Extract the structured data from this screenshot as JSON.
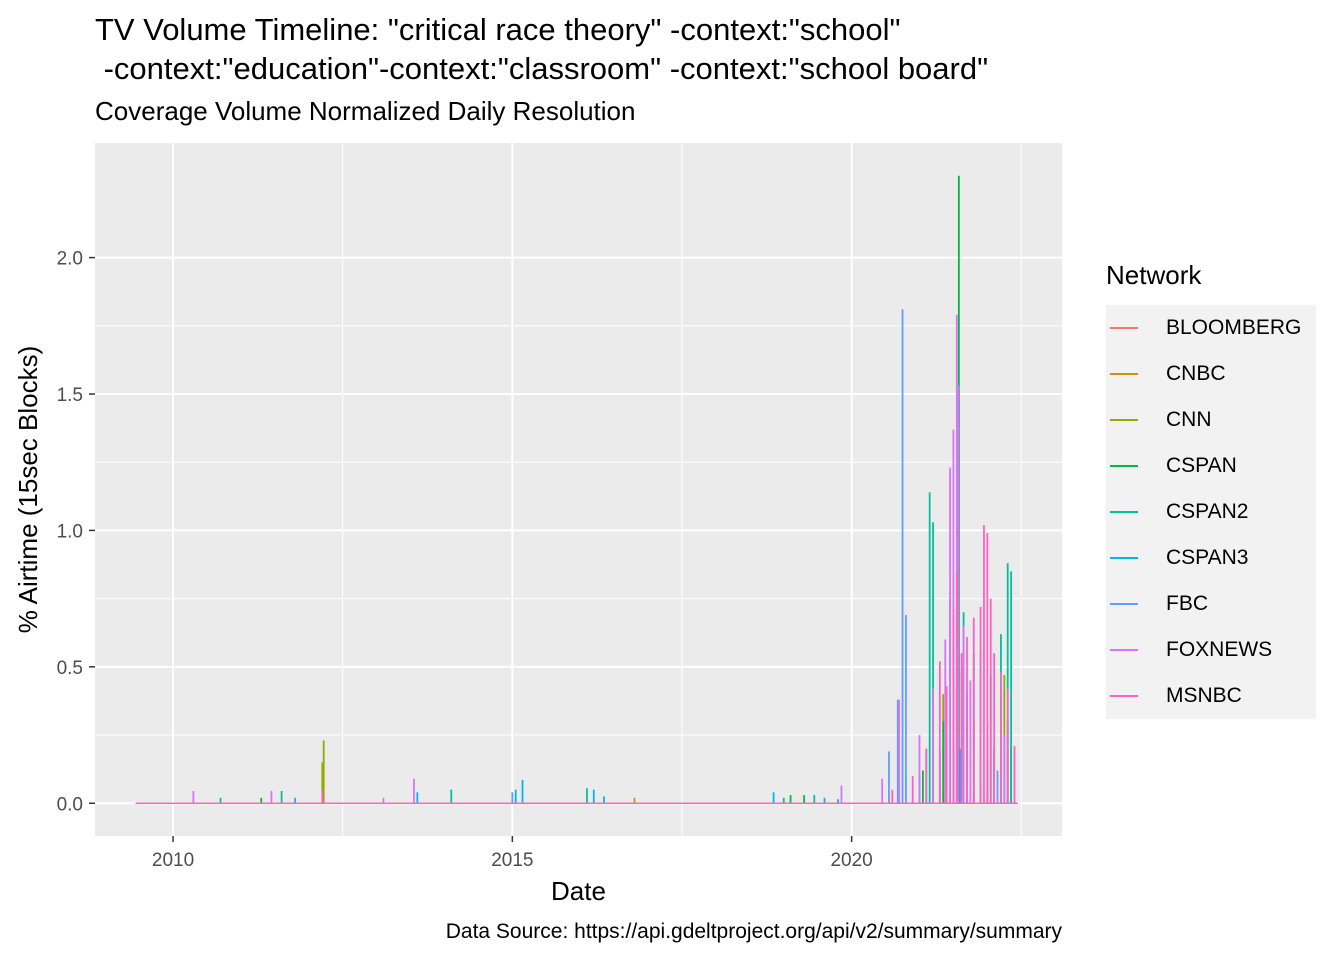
{
  "title": "TV Volume Timeline: \"critical race theory\" -context:\"school\"\n -context:\"education\"-context:\"classroom\" -context:\"school board\"",
  "subtitle": "Coverage Volume Normalized Daily Resolution",
  "caption": "Data Source: https://api.gdeltproject.org/api/v2/summary/summary",
  "colors": {
    "panel_bg": "#ebebeb",
    "grid": "#ffffff",
    "BLOOMBERG": "#F8766D",
    "CNBC": "#D39200",
    "CNN": "#93AA00",
    "CSPAN": "#00BA38",
    "CSPAN2": "#00C19F",
    "CSPAN3": "#00B9E3",
    "FBC": "#619CFF",
    "FOXNEWS": "#DB72FB",
    "MSNBC": "#FF61C3"
  },
  "legend": {
    "title": "Network",
    "items": [
      "BLOOMBERG",
      "CNBC",
      "CNN",
      "CSPAN",
      "CSPAN2",
      "CSPAN3",
      "FBC",
      "FOXNEWS",
      "MSNBC"
    ]
  },
  "chart_data": {
    "type": "line",
    "xlabel": "Date",
    "ylabel": "% Airtime (15sec Blocks)",
    "xlim": [
      2008.85,
      2023.1
    ],
    "ylim": [
      -0.12,
      2.42
    ],
    "x_ticks": [
      2010,
      2015,
      2020
    ],
    "x_tick_labels": [
      "2010",
      "2015",
      "2020"
    ],
    "y_ticks": [
      0.0,
      0.5,
      1.0,
      1.5,
      2.0
    ],
    "y_tick_labels": [
      "0.0",
      "0.5",
      "1.0",
      "1.5",
      "2.0"
    ],
    "x_range_start": 2009.45,
    "x_range_end": 2022.45,
    "baseline": 0.0,
    "grid": true,
    "legend_position": "right",
    "series": [
      {
        "name": "BLOOMBERG",
        "spikes": [
          [
            2021.45,
            0.05
          ],
          [
            2021.62,
            0.08
          ],
          [
            2021.9,
            0.04
          ]
        ]
      },
      {
        "name": "CNBC",
        "spikes": [
          [
            2016.8,
            0.02
          ],
          [
            2021.3,
            0.06
          ],
          [
            2021.55,
            0.1
          ],
          [
            2022.0,
            0.05
          ]
        ]
      },
      {
        "name": "CNN",
        "spikes": [
          [
            2012.22,
            0.23
          ],
          [
            2012.2,
            0.15
          ],
          [
            2020.7,
            0.06
          ],
          [
            2021.0,
            0.1
          ],
          [
            2021.2,
            0.18
          ],
          [
            2021.35,
            0.4
          ],
          [
            2021.5,
            0.55
          ],
          [
            2021.62,
            0.48
          ],
          [
            2021.8,
            0.3
          ],
          [
            2022.0,
            0.25
          ],
          [
            2022.25,
            0.47
          ],
          [
            2022.35,
            0.2
          ]
        ]
      },
      {
        "name": "CSPAN",
        "spikes": [
          [
            2011.3,
            0.02
          ],
          [
            2019.1,
            0.03
          ],
          [
            2019.3,
            0.03
          ],
          [
            2021.05,
            0.12
          ],
          [
            2021.35,
            0.3
          ],
          [
            2021.5,
            0.45
          ],
          [
            2021.58,
            2.3
          ],
          [
            2021.7,
            0.4
          ],
          [
            2021.9,
            0.25
          ],
          [
            2022.1,
            0.2
          ]
        ]
      },
      {
        "name": "CSPAN2",
        "spikes": [
          [
            2010.7,
            0.02
          ],
          [
            2011.6,
            0.045
          ],
          [
            2014.1,
            0.05
          ],
          [
            2016.1,
            0.055
          ],
          [
            2019.0,
            0.02
          ],
          [
            2019.45,
            0.03
          ],
          [
            2021.1,
            0.2
          ],
          [
            2021.15,
            1.14
          ],
          [
            2021.2,
            1.03
          ],
          [
            2021.45,
            0.75
          ],
          [
            2021.55,
            0.6
          ],
          [
            2021.65,
            0.7
          ],
          [
            2021.8,
            0.55
          ],
          [
            2022.05,
            0.47
          ],
          [
            2022.2,
            0.62
          ],
          [
            2022.3,
            0.88
          ],
          [
            2022.35,
            0.85
          ]
        ]
      },
      {
        "name": "CSPAN3",
        "spikes": [
          [
            2011.8,
            0.02
          ],
          [
            2013.6,
            0.04
          ],
          [
            2015.05,
            0.05
          ],
          [
            2015.15,
            0.085
          ],
          [
            2016.2,
            0.05
          ],
          [
            2016.35,
            0.025
          ],
          [
            2018.85,
            0.04
          ],
          [
            2019.6,
            0.02
          ],
          [
            2019.8,
            0.015
          ],
          [
            2021.0,
            0.05
          ],
          [
            2021.3,
            0.15
          ],
          [
            2021.6,
            0.2
          ],
          [
            2022.0,
            0.15
          ],
          [
            2022.3,
            0.3
          ]
        ]
      },
      {
        "name": "FBC",
        "spikes": [
          [
            2015.0,
            0.04
          ],
          [
            2020.55,
            0.19
          ],
          [
            2020.75,
            1.81
          ],
          [
            2020.8,
            0.69
          ],
          [
            2020.68,
            0.38
          ],
          [
            2021.0,
            0.1
          ],
          [
            2021.3,
            0.2
          ],
          [
            2021.7,
            0.15
          ],
          [
            2022.15,
            0.12
          ]
        ]
      },
      {
        "name": "FOXNEWS",
        "spikes": [
          [
            2010.3,
            0.045
          ],
          [
            2011.45,
            0.045
          ],
          [
            2013.1,
            0.02
          ],
          [
            2013.55,
            0.09
          ],
          [
            2019.85,
            0.065
          ],
          [
            2020.45,
            0.09
          ],
          [
            2020.7,
            0.38
          ],
          [
            2021.0,
            0.25
          ],
          [
            2021.2,
            0.42
          ],
          [
            2021.38,
            0.6
          ],
          [
            2021.45,
            1.23
          ],
          [
            2021.5,
            1.37
          ],
          [
            2021.55,
            1.79
          ],
          [
            2021.57,
            1.53
          ],
          [
            2021.65,
            0.65
          ],
          [
            2021.75,
            0.45
          ],
          [
            2021.9,
            0.55
          ],
          [
            2022.0,
            0.3
          ],
          [
            2022.25,
            0.25
          ]
        ]
      },
      {
        "name": "MSNBC",
        "spikes": [
          [
            2012.2,
            0.05
          ],
          [
            2020.6,
            0.05
          ],
          [
            2020.9,
            0.1
          ],
          [
            2021.1,
            0.2
          ],
          [
            2021.3,
            0.52
          ],
          [
            2021.4,
            0.43
          ],
          [
            2021.5,
            0.71
          ],
          [
            2021.55,
            0.85
          ],
          [
            2021.62,
            0.55
          ],
          [
            2021.7,
            0.61
          ],
          [
            2021.8,
            0.68
          ],
          [
            2021.9,
            0.72
          ],
          [
            2021.95,
            1.02
          ],
          [
            2022.0,
            0.99
          ],
          [
            2022.05,
            0.75
          ],
          [
            2022.1,
            0.55
          ],
          [
            2022.2,
            0.48
          ],
          [
            2022.3,
            0.42
          ],
          [
            2022.4,
            0.21
          ]
        ]
      }
    ]
  }
}
